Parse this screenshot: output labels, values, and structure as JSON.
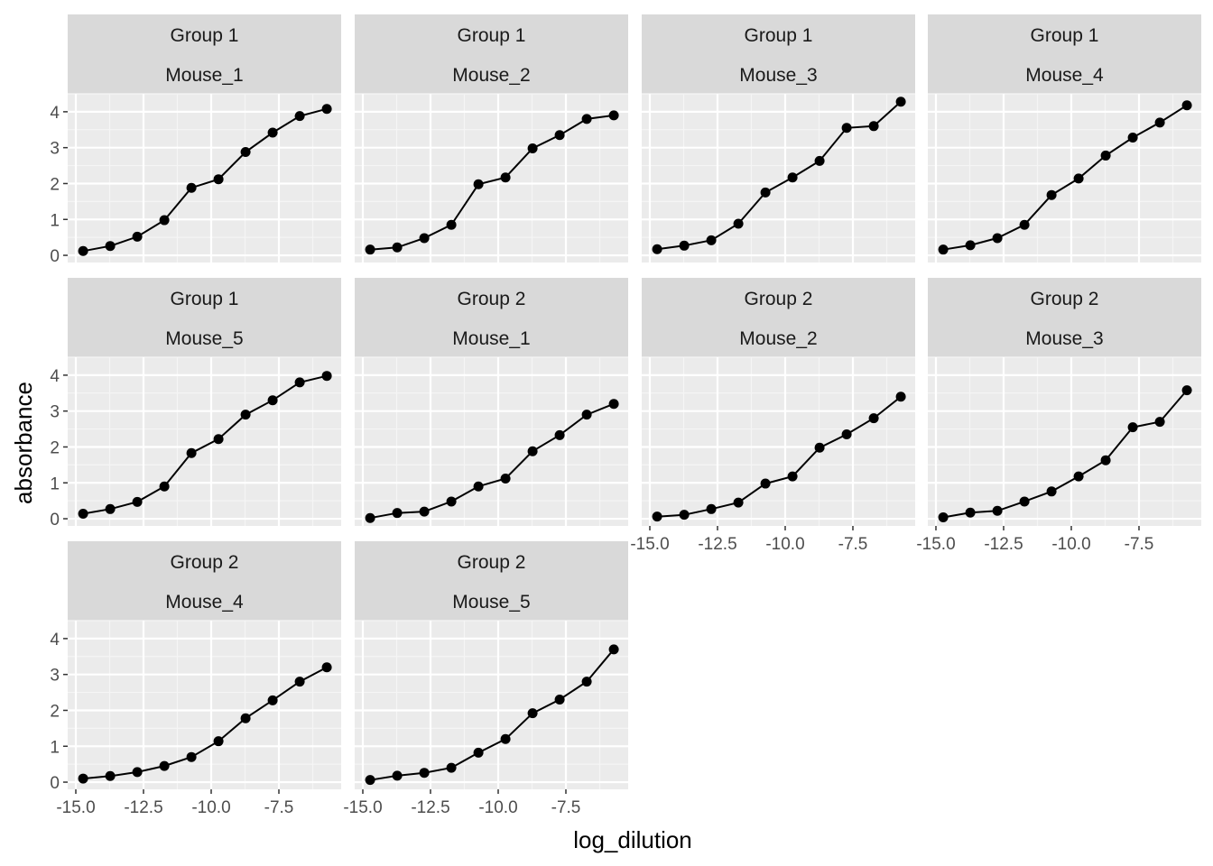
{
  "chart_data": {
    "type": "line",
    "xlabel": "log_dilution",
    "ylabel": "absorbance",
    "xlim": [
      -15.3,
      -5.2
    ],
    "ylim": [
      -0.2,
      4.5
    ],
    "x_ticks": [
      -15.0,
      -12.5,
      -10.0,
      -7.5
    ],
    "x_tick_labels": [
      "-15.0",
      "-12.5",
      "-10.0",
      "-7.5"
    ],
    "y_ticks": [
      0,
      1,
      2,
      3,
      4
    ],
    "y_tick_labels": [
      "0",
      "1",
      "2",
      "3",
      "4"
    ],
    "grid": true,
    "x": [
      -14.73,
      -13.73,
      -12.73,
      -11.73,
      -10.73,
      -9.73,
      -8.73,
      -7.73,
      -6.73,
      -5.73
    ],
    "panels": [
      {
        "group": "Group 1",
        "mouse": "Mouse_1",
        "values": [
          0.12,
          0.26,
          0.52,
          0.98,
          1.88,
          2.12,
          2.88,
          3.42,
          3.88,
          4.08
        ]
      },
      {
        "group": "Group 1",
        "mouse": "Mouse_2",
        "values": [
          0.16,
          0.22,
          0.48,
          0.85,
          1.98,
          2.17,
          2.98,
          3.35,
          3.8,
          3.9
        ]
      },
      {
        "group": "Group 1",
        "mouse": "Mouse_3",
        "values": [
          0.17,
          0.27,
          0.42,
          0.88,
          1.75,
          2.17,
          2.63,
          3.55,
          3.6,
          4.28
        ]
      },
      {
        "group": "Group 1",
        "mouse": "Mouse_4",
        "values": [
          0.16,
          0.28,
          0.48,
          0.85,
          1.68,
          2.14,
          2.78,
          3.28,
          3.7,
          4.18
        ]
      },
      {
        "group": "Group 1",
        "mouse": "Mouse_5",
        "values": [
          0.14,
          0.27,
          0.47,
          0.9,
          1.83,
          2.22,
          2.9,
          3.3,
          3.8,
          3.98
        ]
      },
      {
        "group": "Group 2",
        "mouse": "Mouse_1",
        "values": [
          0.02,
          0.16,
          0.2,
          0.48,
          0.9,
          1.12,
          1.88,
          2.33,
          2.9,
          3.2
        ]
      },
      {
        "group": "Group 2",
        "mouse": "Mouse_2",
        "values": [
          0.06,
          0.11,
          0.27,
          0.45,
          0.98,
          1.18,
          1.98,
          2.35,
          2.8,
          3.4
        ]
      },
      {
        "group": "Group 2",
        "mouse": "Mouse_3",
        "values": [
          0.04,
          0.17,
          0.22,
          0.48,
          0.76,
          1.18,
          1.63,
          2.55,
          2.7,
          3.58
        ]
      },
      {
        "group": "Group 2",
        "mouse": "Mouse_4",
        "values": [
          0.1,
          0.17,
          0.28,
          0.45,
          0.7,
          1.14,
          1.78,
          2.28,
          2.8,
          3.2
        ]
      },
      {
        "group": "Group 2",
        "mouse": "Mouse_5",
        "values": [
          0.06,
          0.18,
          0.26,
          0.4,
          0.82,
          1.2,
          1.92,
          2.3,
          2.8,
          3.7
        ]
      }
    ]
  },
  "colors": {
    "panel_bg": "#ebebeb",
    "grid_major": "#ffffff",
    "grid_minor": "#f5f5f5",
    "strip_bg": "#d9d9d9",
    "line": "#000000",
    "tick": "#333333"
  }
}
